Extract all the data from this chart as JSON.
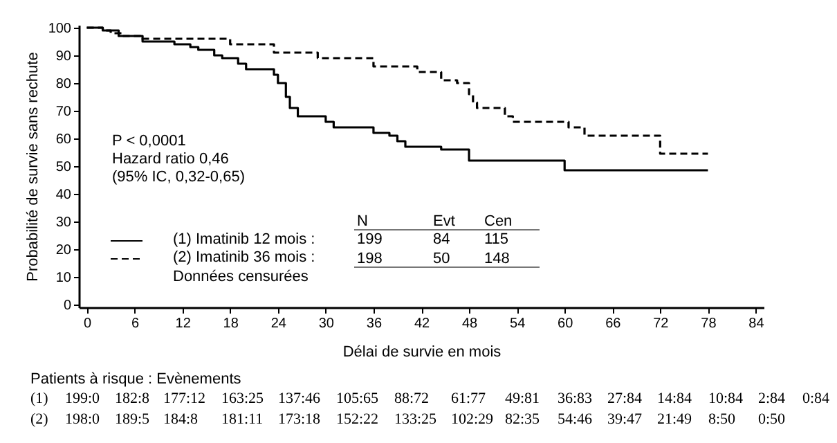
{
  "chart_data": {
    "type": "step",
    "xlabel": "Délai de survie en mois",
    "ylabel": "Probabilité de survie sans rechute",
    "xlim": [
      -1,
      85
    ],
    "xticks": [
      0,
      6,
      12,
      18,
      24,
      30,
      36,
      42,
      48,
      54,
      60,
      66,
      72,
      78,
      84
    ],
    "ylim": [
      -1,
      101
    ],
    "yticks": [
      0,
      10,
      20,
      30,
      40,
      50,
      60,
      70,
      80,
      90,
      100
    ],
    "grid": false,
    "legend": "bottom left",
    "marker": "none",
    "series": [
      {
        "name": "(1) Imatinib 12 mois :",
        "color": "#000000",
        "line_style": "solid",
        "x": [
          0,
          2,
          4,
          7,
          11,
          13,
          14,
          16,
          17,
          19,
          20,
          23.5,
          24,
          25,
          25.5,
          26.5,
          30,
          31,
          36,
          38,
          39,
          40,
          44.5,
          48,
          60,
          78
        ],
        "values": [
          100,
          99,
          97,
          95,
          94,
          93,
          92,
          90,
          89,
          87,
          85,
          83,
          80,
          75,
          71,
          68,
          66,
          64,
          62,
          61,
          59,
          57,
          56,
          52,
          48.5,
          48.5
        ]
      },
      {
        "name": "(2) Imatinib 36 mois :",
        "color": "#000000",
        "line_style": "dashed",
        "x": [
          0,
          2,
          3,
          4.5,
          7,
          18,
          23.5,
          29,
          36,
          41.5,
          44.5,
          46.5,
          48,
          48.5,
          49,
          52.5,
          53.5,
          60.5,
          62.5,
          72,
          78
        ],
        "values": [
          100,
          99,
          98,
          97,
          96,
          94,
          91,
          89,
          86,
          84,
          81,
          80,
          76,
          73,
          71,
          68,
          66,
          64,
          61,
          54.5,
          54.5
        ]
      }
    ],
    "annotations": [
      "P < 0,0001",
      "Hazard ratio 0,46",
      "(95% IC, 0,32-0,65)",
      "Données censurées",
      "N",
      "Evt",
      "Cen",
      "199",
      "84",
      "115",
      "198",
      "50",
      "148",
      "Patients à risque : Evènements",
      "(1)",
      "199:0",
      "182:8",
      "177:12",
      "163:25",
      "137:46",
      "105:65",
      "88:72",
      "61:77",
      "49:81",
      "36:83",
      "27:84",
      "14:84",
      "10:84",
      "2:84",
      "0:84",
      "(2)",
      "198:0",
      "189:5",
      "184:8",
      "181:11",
      "173:18",
      "152:22",
      "133:25",
      "102:29",
      "82:35",
      "54:46",
      "39:47",
      "21:49",
      "8:50",
      "0:50"
    ]
  }
}
